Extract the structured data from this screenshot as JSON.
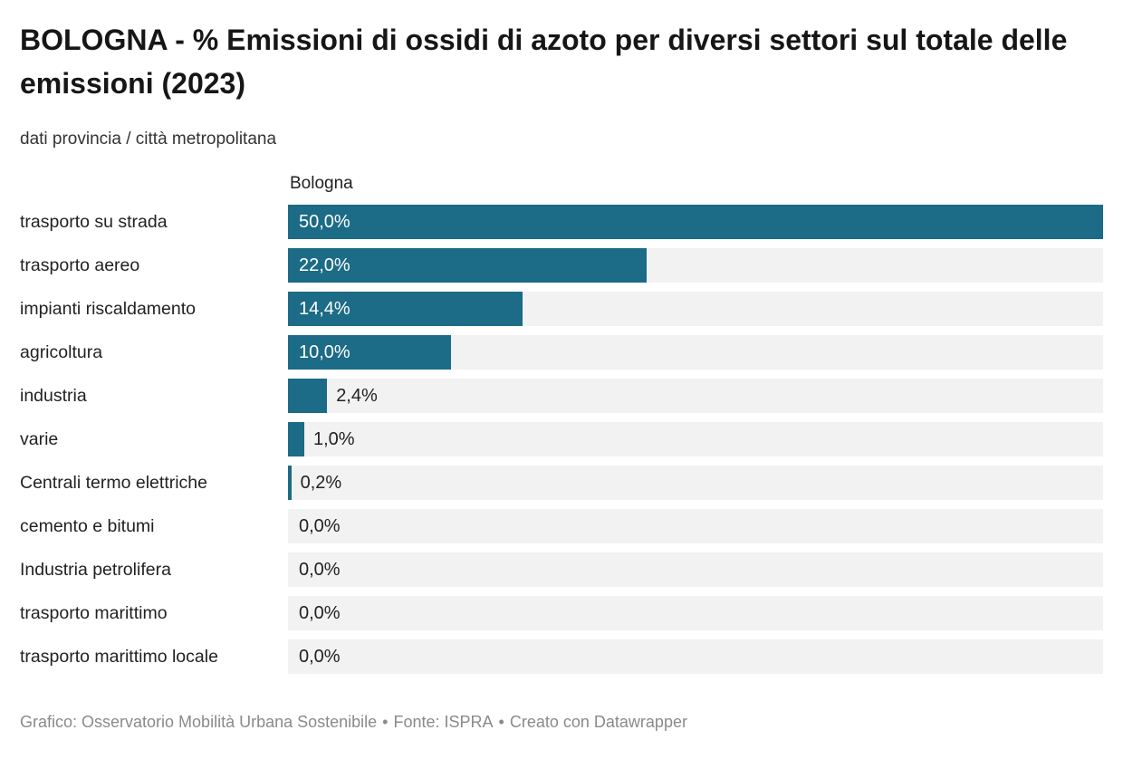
{
  "header": {
    "title": "BOLOGNA - % Emissioni di ossidi di azoto per diversi settori sul totale delle emissioni (2023)",
    "subtitle": "dati provincia / città metropolitana"
  },
  "chart_data": {
    "type": "bar",
    "orientation": "horizontal",
    "column_header": "Bologna",
    "categories": [
      "trasporto su strada",
      "trasporto aereo",
      "impianti riscaldamento",
      "agricoltura",
      "industria",
      "varie",
      "Centrali termo elettriche",
      "cemento e bitumi",
      "Industria petrolifera",
      "trasporto marittimo",
      "trasporto marittimo locale"
    ],
    "values": [
      50.0,
      22.0,
      14.4,
      10.0,
      2.4,
      1.0,
      0.2,
      0.0,
      0.0,
      0.0,
      0.0
    ],
    "value_labels": [
      "50,0%",
      "22,0%",
      "14,4%",
      "10,0%",
      "2,4%",
      "1,0%",
      "0,2%",
      "0,0%",
      "0,0%",
      "0,0%",
      "0,0%"
    ],
    "xlim": [
      0,
      50
    ],
    "grid": false,
    "legend": false,
    "colors": {
      "bar": "#1c6b87",
      "track": "#f2f2f2",
      "value_inside": "#ffffff",
      "value_outside": "#222222"
    }
  },
  "footer": {
    "credit": "Grafico: Osservatorio Mobilità Urbana Sostenibile",
    "source": "Fonte: ISPRA",
    "tool": "Creato con Datawrapper",
    "separator": "•"
  }
}
